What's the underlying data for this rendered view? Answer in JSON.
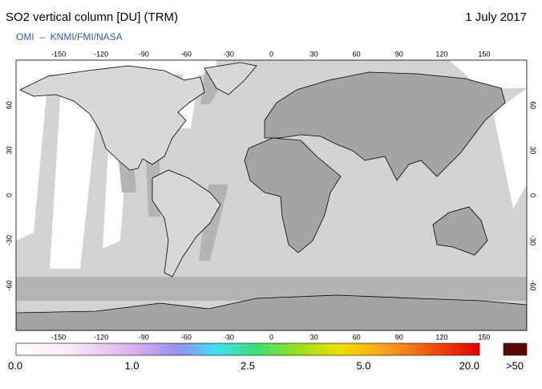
{
  "header": {
    "title": "SO2 vertical column [DU] (TRM)",
    "date": "1 July 2017",
    "source": "OMI  –  KNMI/FMI/NASA"
  },
  "map": {
    "lon_ticks": [
      -150,
      -120,
      -90,
      -60,
      -30,
      0,
      30,
      60,
      90,
      120,
      150
    ],
    "lat_ticks": [
      -60,
      -30,
      0,
      30,
      60
    ]
  },
  "colorbar": {
    "labels": [
      "0.0",
      "1.0",
      "2.5",
      "5.0",
      "20.0"
    ],
    "over_label": ">50"
  }
}
